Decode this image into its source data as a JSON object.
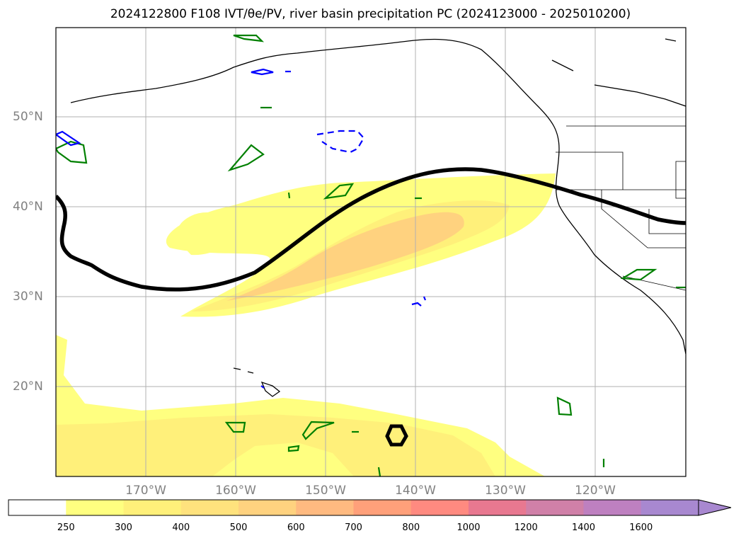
{
  "title": "2024122800 F108 IVT/θe/PV, river basin precipitation PC (2024123000 - 2025010200)",
  "map": {
    "lat_labels": [
      "50°N",
      "40°N",
      "30°N",
      "20°N"
    ],
    "lon_labels": [
      "170°W",
      "160°W",
      "150°W",
      "140°W",
      "130°W",
      "120°W"
    ],
    "lat_ticks": [
      50,
      40,
      30,
      20
    ],
    "lon_ticks": [
      -170,
      -160,
      -150,
      -140,
      -130,
      -120
    ],
    "extent": {
      "lon": [
        -180,
        -110
      ],
      "lat": [
        10,
        60
      ]
    },
    "gridlines": true
  },
  "colorbar": {
    "tick_labels": [
      "250",
      "300",
      "400",
      "500",
      "600",
      "700",
      "800",
      "1000",
      "1200",
      "1400",
      "1600"
    ],
    "colors": [
      "#ffffff",
      "#ffff80",
      "#fff07a",
      "#ffe27d",
      "#ffd27f",
      "#ffba80",
      "#ffa07a",
      "#ff8a80",
      "#e87890",
      "#d080a8",
      "#be80c0",
      "#a888d0"
    ],
    "extend": "max"
  },
  "contours": {
    "ivt_fill_colors": [
      "#ffff80",
      "#fff07a",
      "#ffd27f"
    ],
    "pv_color": "#008000",
    "theta_e_color": "#0000ff",
    "front_color": "#000000"
  }
}
